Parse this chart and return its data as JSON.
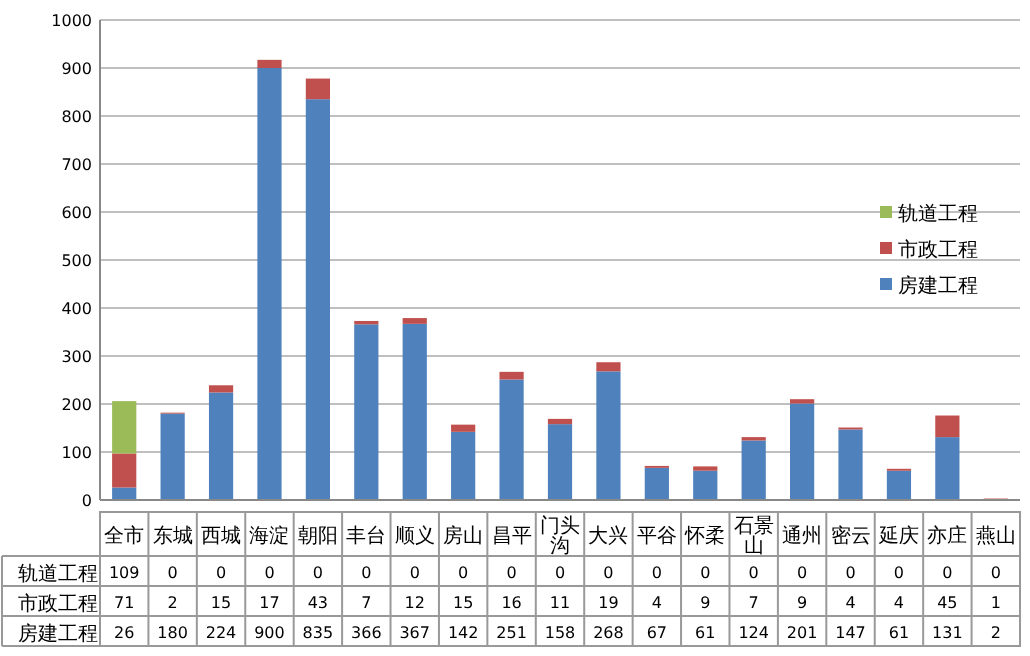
{
  "chart_data": {
    "type": "bar",
    "stacked": true,
    "categories": [
      "全市",
      "东城",
      "西城",
      "海淀",
      "朝阳",
      "丰台",
      "顺义",
      "房山",
      "昌平",
      "门头沟",
      "大兴",
      "平谷",
      "怀柔",
      "石景山",
      "通州",
      "密云",
      "延庆",
      "亦庄",
      "燕山"
    ],
    "series": [
      {
        "name": "房建工程",
        "color": "#4f81bd",
        "values": [
          26,
          180,
          224,
          900,
          835,
          366,
          367,
          142,
          251,
          158,
          268,
          67,
          61,
          124,
          201,
          147,
          61,
          131,
          2
        ]
      },
      {
        "name": "市政工程",
        "color": "#c0504d",
        "values": [
          71,
          2,
          15,
          17,
          43,
          7,
          12,
          15,
          16,
          11,
          19,
          4,
          9,
          7,
          9,
          4,
          4,
          45,
          1
        ]
      },
      {
        "name": "轨道工程",
        "color": "#9bbb59",
        "values": [
          109,
          0,
          0,
          0,
          0,
          0,
          0,
          0,
          0,
          0,
          0,
          0,
          0,
          0,
          0,
          0,
          0,
          0,
          0
        ]
      }
    ],
    "ylim": [
      0,
      1000
    ],
    "yticks": [
      0,
      100,
      200,
      300,
      400,
      500,
      600,
      700,
      800,
      900,
      1000
    ],
    "grid": "y",
    "legend": "right",
    "data_labels": true
  }
}
